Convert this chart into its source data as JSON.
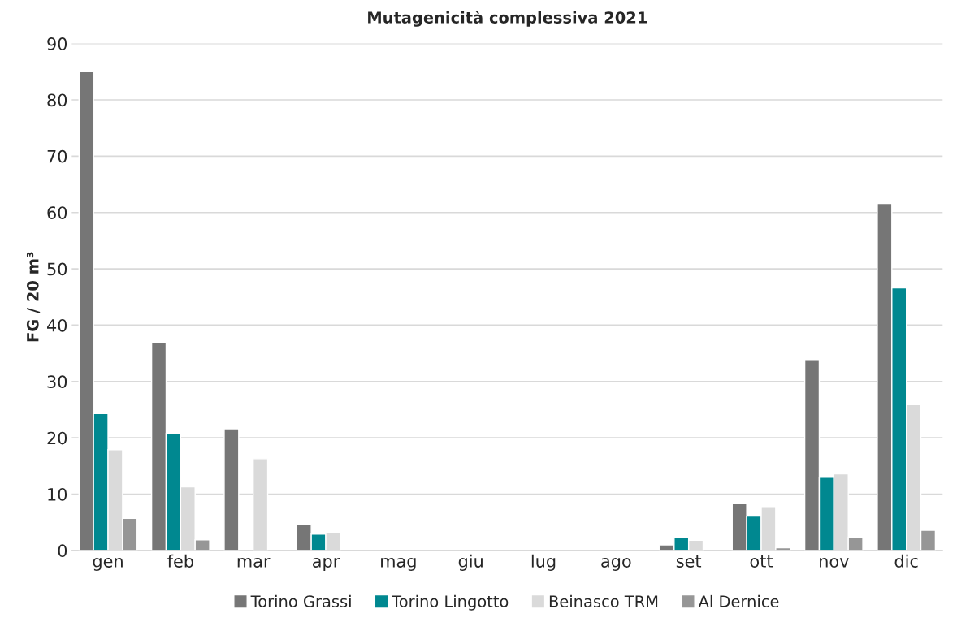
{
  "chart_data": {
    "type": "bar",
    "title": "Mutagenicità complessiva 2021",
    "ylabel": "FG / 20 m³",
    "categories": [
      "gen",
      "feb",
      "mar",
      "apr",
      "mag",
      "giu",
      "lug",
      "ago",
      "set",
      "ott",
      "nov",
      "dic"
    ],
    "series": [
      {
        "name": "Torino Grassi",
        "color": "#767676",
        "values": [
          85,
          37,
          21.6,
          4.7,
          null,
          null,
          null,
          null,
          1.0,
          8.3,
          33.9,
          61.6
        ]
      },
      {
        "name": "Torino Lingotto",
        "color": "#008890",
        "values": [
          24.3,
          20.8,
          null,
          2.9,
          null,
          null,
          null,
          null,
          2.4,
          6.1,
          13.0,
          46.6
        ]
      },
      {
        "name": "Beinasco TRM",
        "color": "#dadada",
        "values": [
          17.9,
          11.3,
          16.3,
          3.1,
          null,
          null,
          null,
          null,
          1.8,
          7.8,
          13.6,
          25.9
        ]
      },
      {
        "name": "Al Dernice",
        "color": "#969696",
        "values": [
          5.7,
          1.9,
          null,
          null,
          null,
          null,
          null,
          null,
          null,
          0.5,
          2.3,
          3.6
        ]
      }
    ],
    "ylim": [
      0,
      90
    ],
    "yticks": [
      0,
      10,
      20,
      30,
      40,
      50,
      60,
      70,
      80,
      90
    ],
    "grid": "y",
    "legend": "bottom"
  }
}
